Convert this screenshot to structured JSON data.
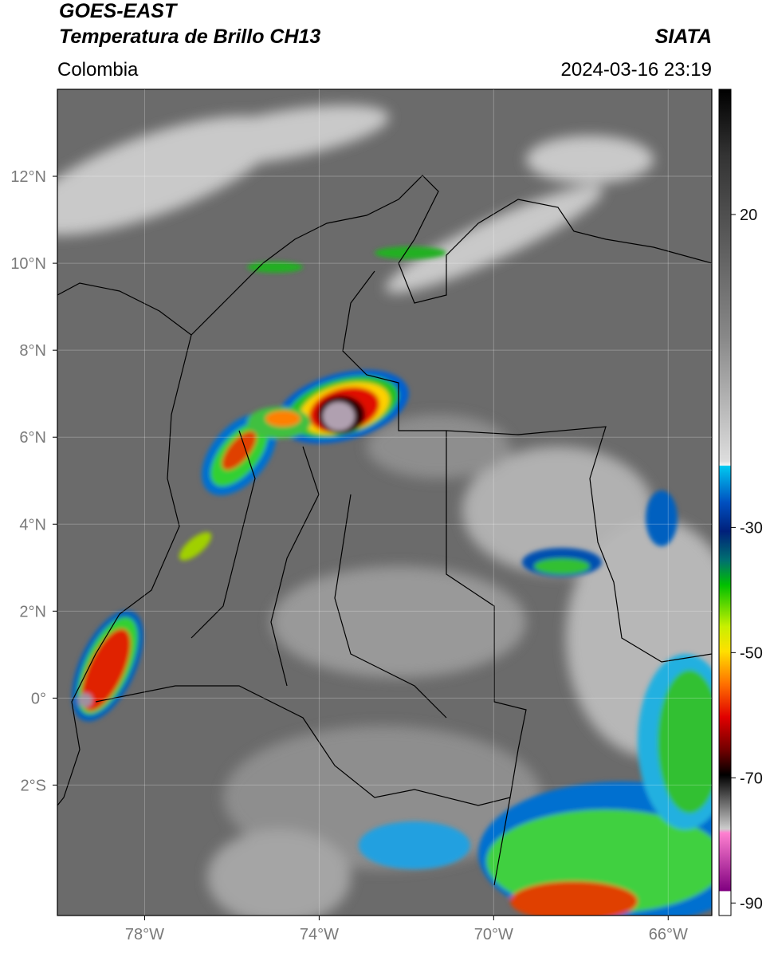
{
  "header": {
    "title": "GOES-EAST",
    "subtitle": "Temperatura de Brillo CH13",
    "source": "SIATA",
    "region": "Colombia",
    "timestamp": "2024-03-16 23:19"
  },
  "map": {
    "lon_range": [
      -80,
      -65
    ],
    "lat_range": [
      -5,
      14
    ],
    "lat_ticks": [
      {
        "value": 12,
        "label": "12°N"
      },
      {
        "value": 10,
        "label": "10°N"
      },
      {
        "value": 8,
        "label": "8°N"
      },
      {
        "value": 6,
        "label": "6°N"
      },
      {
        "value": 4,
        "label": "4°N"
      },
      {
        "value": 2,
        "label": "2°N"
      },
      {
        "value": 0,
        "label": "0°"
      },
      {
        "value": -2,
        "label": "2°S"
      }
    ],
    "lon_ticks": [
      {
        "value": -78,
        "label": "78°W"
      },
      {
        "value": -74,
        "label": "74°W"
      },
      {
        "value": -70,
        "label": "70°W"
      },
      {
        "value": -66,
        "label": "66°W"
      }
    ],
    "grid": true
  },
  "colorbar": {
    "range": [
      -92,
      40
    ],
    "ticks": [
      20,
      -30,
      -50,
      -70,
      -90
    ]
  }
}
